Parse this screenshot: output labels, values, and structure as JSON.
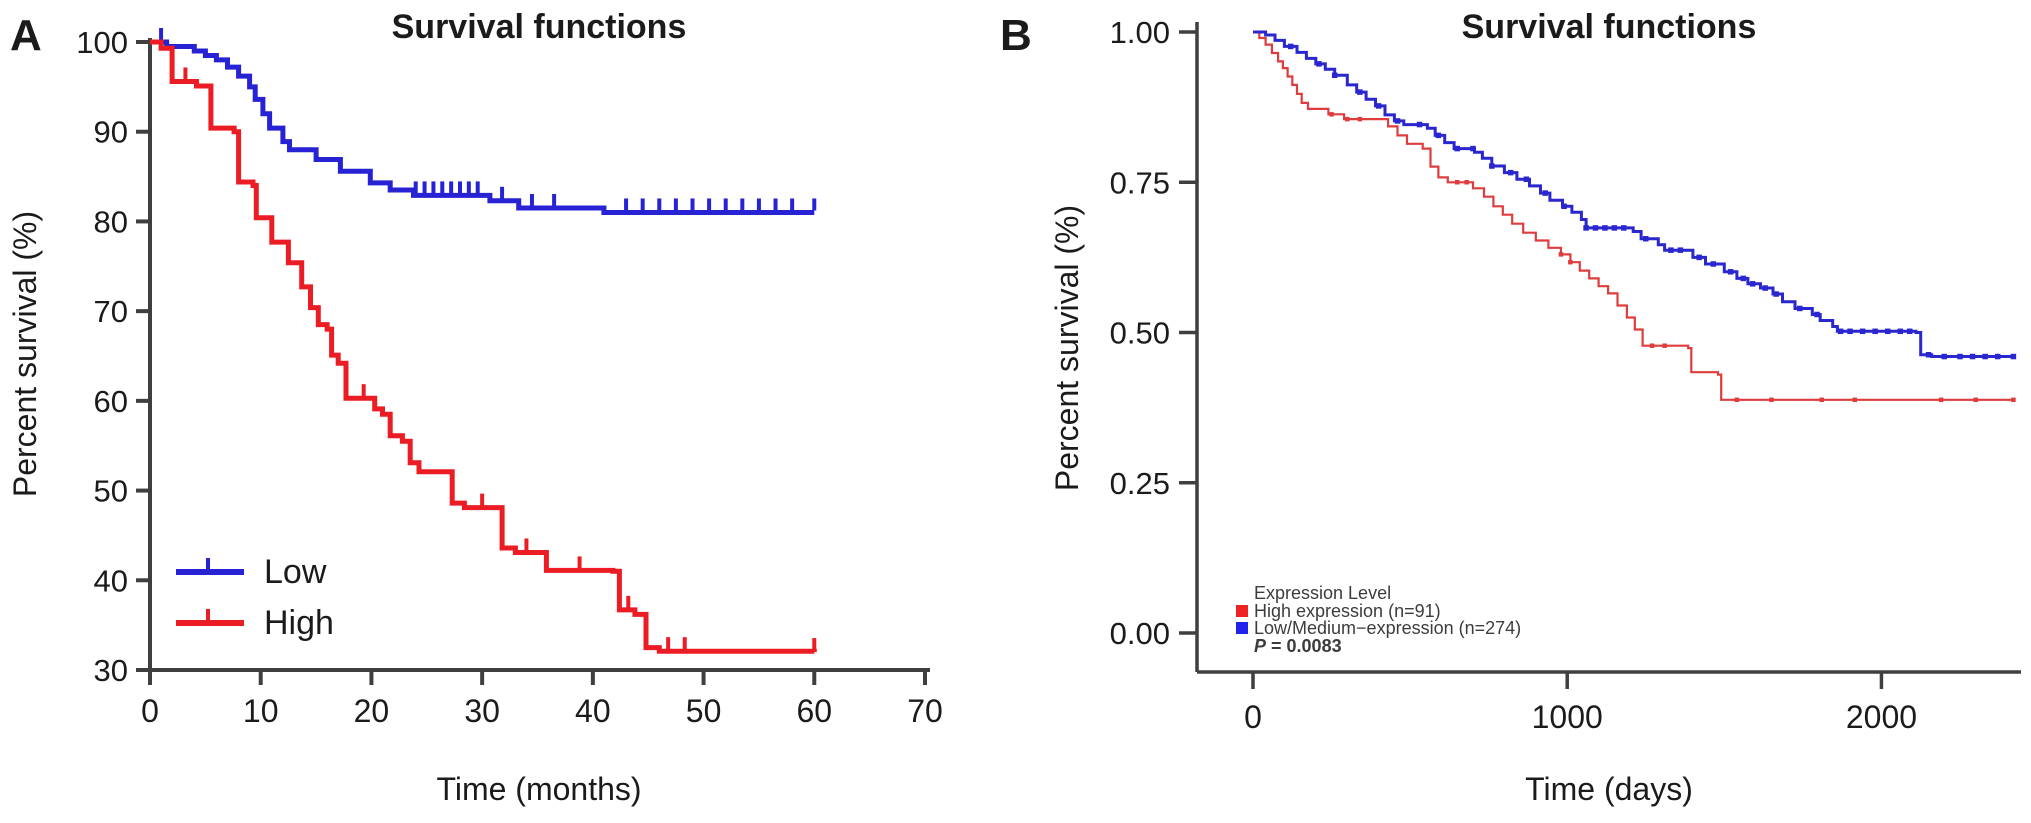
{
  "figure": {
    "background": "#ffffff",
    "axis_color": "#3f3f3f",
    "text_color": "#1b1b1b"
  },
  "chart_data": [
    {
      "id": "A",
      "type": "line",
      "subtype": "kaplan-meier-step",
      "panel_label": "A",
      "title": "Survival functions",
      "xlabel": "Time (months)",
      "ylabel": "Percent survival (%)",
      "xlim": [
        0,
        70
      ],
      "ylim": [
        30,
        100
      ],
      "grid": false,
      "legend_position": "inside-lower-left",
      "xticks": [
        {
          "v": 0,
          "label": "0"
        },
        {
          "v": 10,
          "label": "10"
        },
        {
          "v": 20,
          "label": "20"
        },
        {
          "v": 30,
          "label": "30"
        },
        {
          "v": 40,
          "label": "40"
        },
        {
          "v": 50,
          "label": "50"
        },
        {
          "v": 60,
          "label": "60"
        },
        {
          "v": 70,
          "label": "70"
        }
      ],
      "yticks": [
        {
          "v": 30,
          "label": "30"
        },
        {
          "v": 40,
          "label": "40"
        },
        {
          "v": 50,
          "label": "50"
        },
        {
          "v": 60,
          "label": "60"
        },
        {
          "v": 70,
          "label": "70"
        },
        {
          "v": 80,
          "label": "80"
        },
        {
          "v": 90,
          "label": "90"
        },
        {
          "v": 100,
          "label": "100"
        }
      ],
      "series": [
        {
          "name": "Low",
          "color": "#2722d3",
          "steps": [
            [
              0,
              100
            ],
            [
              1.5,
              99.5
            ],
            [
              4,
              99
            ],
            [
              5,
              98.5
            ],
            [
              6,
              98
            ],
            [
              7,
              97.2
            ],
            [
              8,
              96.2
            ],
            [
              9,
              95
            ],
            [
              9.5,
              93.6
            ],
            [
              10.2,
              92
            ],
            [
              10.8,
              90.4
            ],
            [
              12,
              88.9
            ],
            [
              12.6,
              88
            ],
            [
              15,
              86.9
            ],
            [
              17.2,
              85.6
            ],
            [
              19.9,
              84.3
            ],
            [
              21.7,
              83.5
            ],
            [
              23.8,
              82.9
            ],
            [
              30.7,
              82.3
            ],
            [
              33.3,
              81.5
            ],
            [
              41,
              81
            ],
            [
              60,
              81
            ]
          ],
          "censors": [
            1,
            24,
            24.8,
            25.6,
            26.4,
            27.2,
            28,
            28.8,
            29.6,
            31.8,
            34.5,
            36.5,
            43,
            44.5,
            46,
            47.5,
            49,
            50.5,
            52,
            53.5,
            55,
            56.5,
            58,
            60
          ]
        },
        {
          "name": "High",
          "color": "#ec1c24",
          "steps": [
            [
              0,
              100
            ],
            [
              1,
              99.3
            ],
            [
              2,
              95.6
            ],
            [
              4.2,
              95.1
            ],
            [
              5.5,
              90.4
            ],
            [
              7.6,
              90
            ],
            [
              8,
              84.4
            ],
            [
              9.3,
              84
            ],
            [
              9.6,
              80.4
            ],
            [
              11,
              77.7
            ],
            [
              12.5,
              75.4
            ],
            [
              13.7,
              72.7
            ],
            [
              14.5,
              70.4
            ],
            [
              15.2,
              68.5
            ],
            [
              16,
              68
            ],
            [
              16.4,
              65.1
            ],
            [
              17,
              64.2
            ],
            [
              17.7,
              60.3
            ],
            [
              20.3,
              59.1
            ],
            [
              21,
              58.5
            ],
            [
              21.7,
              56.1
            ],
            [
              22.8,
              55.5
            ],
            [
              23.5,
              53.1
            ],
            [
              24.3,
              52.1
            ],
            [
              27.3,
              48.6
            ],
            [
              28.4,
              48.1
            ],
            [
              31.8,
              43.6
            ],
            [
              33,
              43.1
            ],
            [
              35.8,
              41.1
            ],
            [
              41.8,
              41
            ],
            [
              42.4,
              36.7
            ],
            [
              43.8,
              36.2
            ],
            [
              44.8,
              32.5
            ],
            [
              46,
              32.1
            ],
            [
              60,
              32
            ]
          ],
          "censors": [
            3.2,
            19.3,
            30,
            34,
            38.8,
            43.2,
            46.8,
            48.3,
            60
          ]
        }
      ],
      "legend": [
        {
          "label": "Low",
          "color": "#2722d3"
        },
        {
          "label": "High",
          "color": "#ec1c24"
        }
      ]
    },
    {
      "id": "B",
      "type": "line",
      "subtype": "kaplan-meier-step",
      "panel_label": "B",
      "title": "Survival functions",
      "xlabel": "Time (days)",
      "ylabel": "Percent survival (%)",
      "xlim": [
        0,
        2440
      ],
      "ylim": [
        0,
        1.0
      ],
      "grid": false,
      "legend_position": "inside-lower-left",
      "legend_title": "Expression Level",
      "p_italic": "P",
      "p_rest": " = 0.0083",
      "xticks": [
        {
          "v": 0,
          "label": "0"
        },
        {
          "v": 1000,
          "label": "1000"
        },
        {
          "v": 2000,
          "label": "2000"
        }
      ],
      "yticks": [
        {
          "v": 0,
          "label": "0.00"
        },
        {
          "v": 0.25,
          "label": "0.25"
        },
        {
          "v": 0.5,
          "label": "0.50"
        },
        {
          "v": 0.75,
          "label": "0.75"
        },
        {
          "v": 1.0,
          "label": "1.00"
        }
      ],
      "series": [
        {
          "name": "High expression (n=91)",
          "color": "#dd3d3d",
          "steps": [
            [
              0,
              1.0
            ],
            [
              20,
              0.99
            ],
            [
              40,
              0.979
            ],
            [
              60,
              0.965
            ],
            [
              80,
              0.951
            ],
            [
              95,
              0.94
            ],
            [
              110,
              0.926
            ],
            [
              125,
              0.912
            ],
            [
              140,
              0.897
            ],
            [
              155,
              0.882
            ],
            [
              175,
              0.872
            ],
            [
              240,
              0.863
            ],
            [
              290,
              0.855
            ],
            [
              430,
              0.843
            ],
            [
              460,
              0.828
            ],
            [
              490,
              0.814
            ],
            [
              540,
              0.806
            ],
            [
              565,
              0.776
            ],
            [
              590,
              0.758
            ],
            [
              620,
              0.75
            ],
            [
              700,
              0.74
            ],
            [
              735,
              0.726
            ],
            [
              765,
              0.71
            ],
            [
              795,
              0.696
            ],
            [
              825,
              0.681
            ],
            [
              860,
              0.666
            ],
            [
              900,
              0.653
            ],
            [
              940,
              0.641
            ],
            [
              980,
              0.63
            ],
            [
              1010,
              0.617
            ],
            [
              1040,
              0.603
            ],
            [
              1070,
              0.59
            ],
            [
              1100,
              0.577
            ],
            [
              1130,
              0.565
            ],
            [
              1160,
              0.545
            ],
            [
              1190,
              0.525
            ],
            [
              1215,
              0.505
            ],
            [
              1240,
              0.478
            ],
            [
              1385,
              0.474
            ],
            [
              1395,
              0.434
            ],
            [
              1480,
              0.43
            ],
            [
              1490,
              0.388
            ],
            [
              2420,
              0.388
            ]
          ],
          "censors": [
            250,
            300,
            340,
            650,
            680,
            980,
            1010,
            1270,
            1310,
            1540,
            1650,
            1810,
            1915,
            2190,
            2300,
            2420
          ]
        },
        {
          "name": "Low/Medium−expression (n=274)",
          "color": "#2a27cf",
          "steps": [
            [
              0,
              1.0
            ],
            [
              40,
              0.995
            ],
            [
              70,
              0.986
            ],
            [
              100,
              0.976
            ],
            [
              140,
              0.966
            ],
            [
              170,
              0.956
            ],
            [
              200,
              0.947
            ],
            [
              230,
              0.938
            ],
            [
              260,
              0.928
            ],
            [
              300,
              0.912
            ],
            [
              330,
              0.9
            ],
            [
              360,
              0.888
            ],
            [
              390,
              0.877
            ],
            [
              420,
              0.862
            ],
            [
              450,
              0.852
            ],
            [
              480,
              0.846
            ],
            [
              555,
              0.84
            ],
            [
              580,
              0.828
            ],
            [
              610,
              0.816
            ],
            [
              640,
              0.806
            ],
            [
              705,
              0.8
            ],
            [
              730,
              0.79
            ],
            [
              760,
              0.777
            ],
            [
              800,
              0.766
            ],
            [
              840,
              0.755
            ],
            [
              880,
              0.744
            ],
            [
              915,
              0.732
            ],
            [
              945,
              0.72
            ],
            [
              985,
              0.71
            ],
            [
              1015,
              0.7
            ],
            [
              1045,
              0.688
            ],
            [
              1060,
              0.674
            ],
            [
              1210,
              0.668
            ],
            [
              1235,
              0.656
            ],
            [
              1290,
              0.646
            ],
            [
              1310,
              0.637
            ],
            [
              1400,
              0.625
            ],
            [
              1440,
              0.614
            ],
            [
              1500,
              0.601
            ],
            [
              1540,
              0.59
            ],
            [
              1575,
              0.581
            ],
            [
              1615,
              0.574
            ],
            [
              1655,
              0.564
            ],
            [
              1685,
              0.551
            ],
            [
              1725,
              0.54
            ],
            [
              1780,
              0.53
            ],
            [
              1805,
              0.52
            ],
            [
              1845,
              0.51
            ],
            [
              1860,
              0.502
            ],
            [
              2110,
              0.5
            ],
            [
              2125,
              0.463
            ],
            [
              2160,
              0.46
            ],
            [
              2420,
              0.46
            ]
          ],
          "censors": [
            120,
            210,
            260,
            340,
            400,
            460,
            530,
            590,
            650,
            700,
            760,
            820,
            870,
            930,
            990,
            1060,
            1090,
            1120,
            1150,
            1180,
            1250,
            1330,
            1360,
            1420,
            1465,
            1520,
            1560,
            1590,
            1630,
            1665,
            1740,
            1795,
            1870,
            1900,
            1940,
            1980,
            2020,
            2060,
            2090,
            2150,
            2200,
            2250,
            2290,
            2330,
            2370,
            2420
          ]
        }
      ],
      "legend": [
        {
          "label": "High expression (n=91)",
          "color": "#ee2222"
        },
        {
          "label": "Low/Medium−expression (n=274)",
          "color": "#2222ee"
        }
      ]
    }
  ]
}
